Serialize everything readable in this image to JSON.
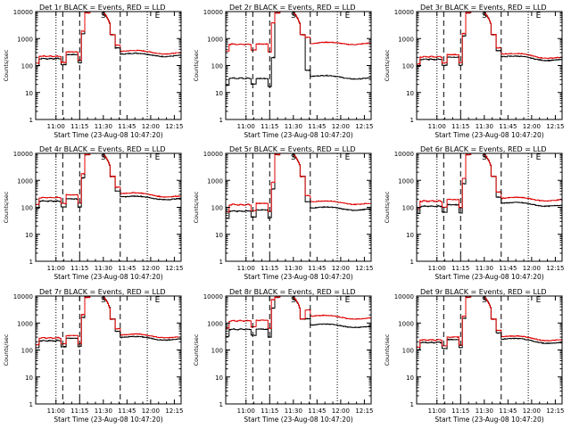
{
  "chart_data": {
    "type": "line",
    "panels": [
      {
        "title": "Det 1r  BLACK = Events, RED = LLD",
        "black": {
          "pre": 180,
          "mid": 255,
          "post": 280,
          "end": 220
        },
        "red": {
          "pre": 220,
          "mid": 320,
          "post": 355,
          "end": 275
        }
      },
      {
        "title": "Det 2r  BLACK = Events, RED = LLD",
        "black": {
          "pre": 34,
          "mid": 33,
          "post": 42,
          "end": 32
        },
        "red": {
          "pre": 620,
          "mid": 630,
          "post": 690,
          "end": 640
        }
      },
      {
        "title": "Det 3r  BLACK = Events, RED = LLD",
        "black": {
          "pre": 170,
          "mid": 205,
          "post": 225,
          "end": 150
        },
        "red": {
          "pre": 210,
          "mid": 255,
          "post": 285,
          "end": 180
        }
      },
      {
        "title": "Det 4r  BLACK = Events, RED = LLD",
        "black": {
          "pre": 170,
          "mid": 205,
          "post": 255,
          "end": 195
        },
        "red": {
          "pre": 230,
          "mid": 290,
          "post": 345,
          "end": 240
        }
      },
      {
        "title": "Det 5r  BLACK = Events, RED = LLD",
        "black": {
          "pre": 72,
          "mid": 80,
          "post": 100,
          "end": 80
        },
        "red": {
          "pre": 125,
          "mid": 140,
          "post": 170,
          "end": 130
        }
      },
      {
        "title": "Det 6r  BLACK = Events, RED = LLD",
        "black": {
          "pre": 110,
          "mid": 125,
          "post": 150,
          "end": 110
        },
        "red": {
          "pre": 170,
          "mid": 195,
          "post": 230,
          "end": 175
        }
      },
      {
        "title": "Det 7r  BLACK = Events, RED = LLD",
        "black": {
          "pre": 220,
          "mid": 270,
          "post": 310,
          "end": 235
        },
        "red": {
          "pre": 280,
          "mid": 340,
          "post": 385,
          "end": 285
        }
      },
      {
        "title": "Det 8r  BLACK = Events, RED = LLD",
        "black": {
          "pre": 580,
          "mid": 590,
          "post": 900,
          "end": 690
        },
        "red": {
          "pre": 1200,
          "mid": 1250,
          "post": 1900,
          "end": 1400
        }
      },
      {
        "title": "Det 9r  BLACK = Events, RED = LLD",
        "black": {
          "pre": 190,
          "mid": 245,
          "post": 270,
          "end": 170
        },
        "red": {
          "pre": 235,
          "mid": 300,
          "post": 335,
          "end": 215
        }
      }
    ],
    "x_ticks": [
      "11:00",
      "11:15",
      "11:30",
      "11:45",
      "12:00",
      "12:15"
    ],
    "x_range_min": [
      57,
      100
    ],
    "xlabel": "Start Time (23-Aug-08 10:47:20)",
    "ylabel": "Counts/sec",
    "y_ticks": [
      "1",
      "10",
      "100",
      "1000",
      "10000"
    ],
    "ylim": [
      1,
      10000
    ],
    "y_scale": "log",
    "markers": {
      "dashed_min": [
        65,
        70,
        82
      ],
      "dotted_min": [
        63,
        90
      ],
      "letters": [
        {
          "min": 76,
          "text": "S"
        },
        {
          "min": 92,
          "text": "E"
        }
      ]
    },
    "series_colors": {
      "black": "#000000",
      "red": "#e00000"
    }
  }
}
